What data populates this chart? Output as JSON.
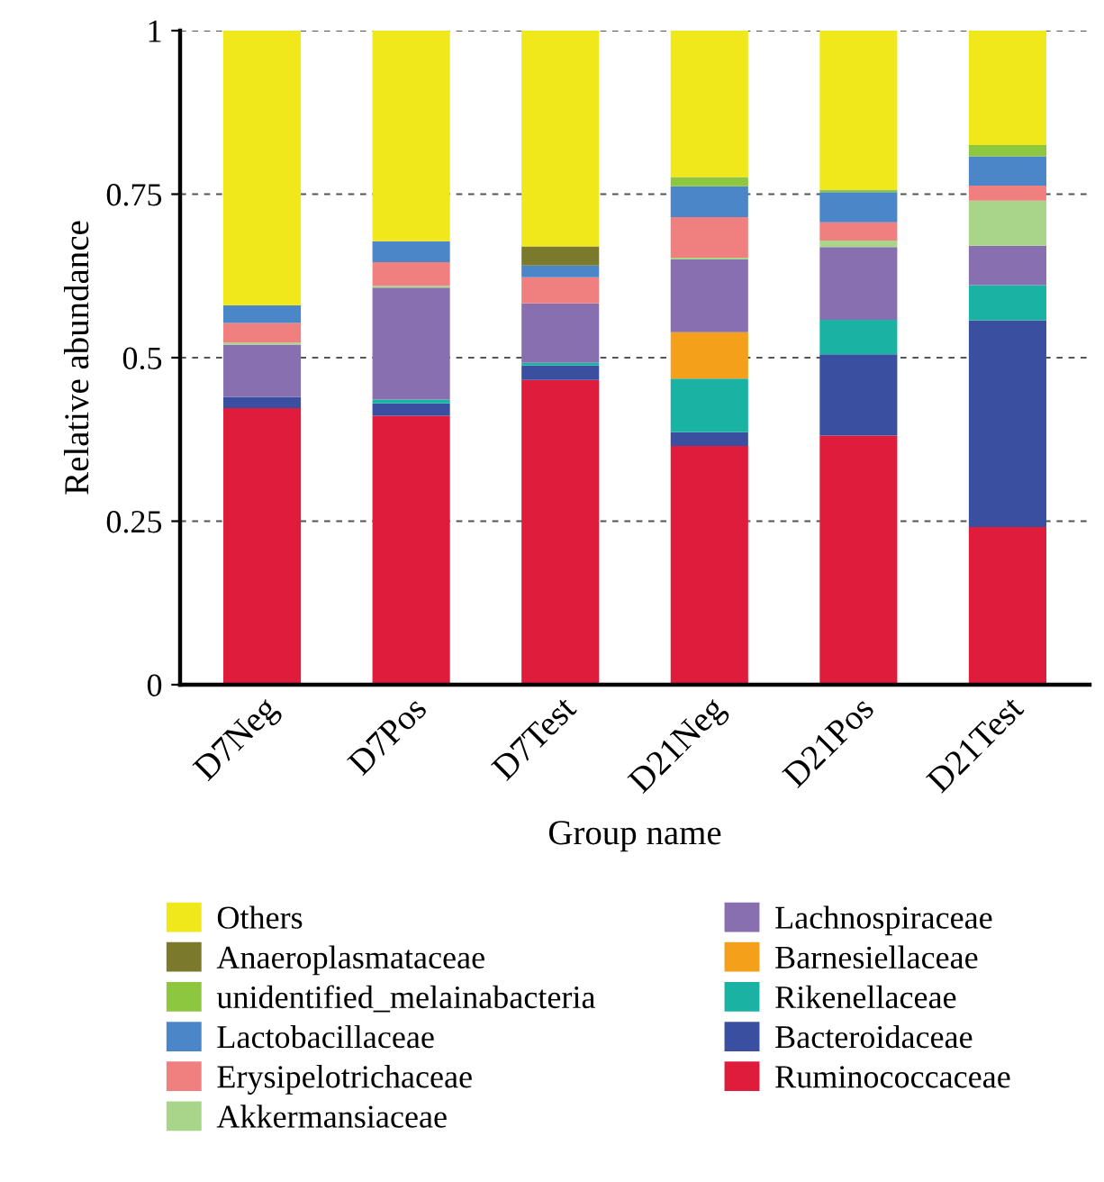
{
  "chart_data": {
    "type": "bar",
    "stacked": true,
    "xlabel": "Group name",
    "ylabel": "Relative abundance",
    "categories": [
      "D7Neg",
      "D7Pos",
      "D7Test",
      "D21Neg",
      "D21Pos",
      "D21Test"
    ],
    "ylim": [
      0,
      1
    ],
    "yticks": [
      0,
      0.25,
      0.5,
      0.75,
      1
    ],
    "grid": "y",
    "legend": "bottom",
    "series": [
      {
        "name": "Ruminococcaceae",
        "color": "#e01c3c",
        "values": [
          0.423,
          0.411,
          0.466,
          0.365,
          0.381,
          0.241
        ]
      },
      {
        "name": "Bacteroidaceae",
        "color": "#3a4fa0",
        "values": [
          0.017,
          0.019,
          0.022,
          0.021,
          0.124,
          0.316
        ]
      },
      {
        "name": "Rikenellaceae",
        "color": "#1ab3a3",
        "values": [
          0,
          0.006,
          0.004,
          0.082,
          0.053,
          0.054
        ]
      },
      {
        "name": "Barnesiellaceae",
        "color": "#f5a01a",
        "values": [
          0,
          0,
          0,
          0.071,
          0,
          0
        ]
      },
      {
        "name": "Lachnospiraceae",
        "color": "#8870b0",
        "values": [
          0.08,
          0.171,
          0.091,
          0.111,
          0.111,
          0.06
        ]
      },
      {
        "name": "Akkermansiaceae",
        "color": "#a8d58a",
        "values": [
          0.003,
          0.003,
          0,
          0.003,
          0.01,
          0.069
        ]
      },
      {
        "name": "Erysipelotrichaceae",
        "color": "#f08080",
        "values": [
          0.03,
          0.036,
          0.04,
          0.062,
          0.028,
          0.023
        ]
      },
      {
        "name": "Lactobacillaceae",
        "color": "#4a86c8",
        "values": [
          0.027,
          0.032,
          0.018,
          0.047,
          0.046,
          0.045
        ]
      },
      {
        "name": "unidentified_melainabacteria",
        "color": "#8dc63f",
        "values": [
          0,
          0,
          0,
          0.014,
          0.004,
          0.017
        ]
      },
      {
        "name": "Anaeroplasmataceae",
        "color": "#7b7a2c",
        "values": [
          0,
          0,
          0.029,
          0,
          0,
          0
        ]
      },
      {
        "name": "Others",
        "color": "#f0e81a",
        "values": [
          0.42,
          0.322,
          0.33,
          0.226,
          0.243,
          0.175
        ]
      }
    ]
  }
}
